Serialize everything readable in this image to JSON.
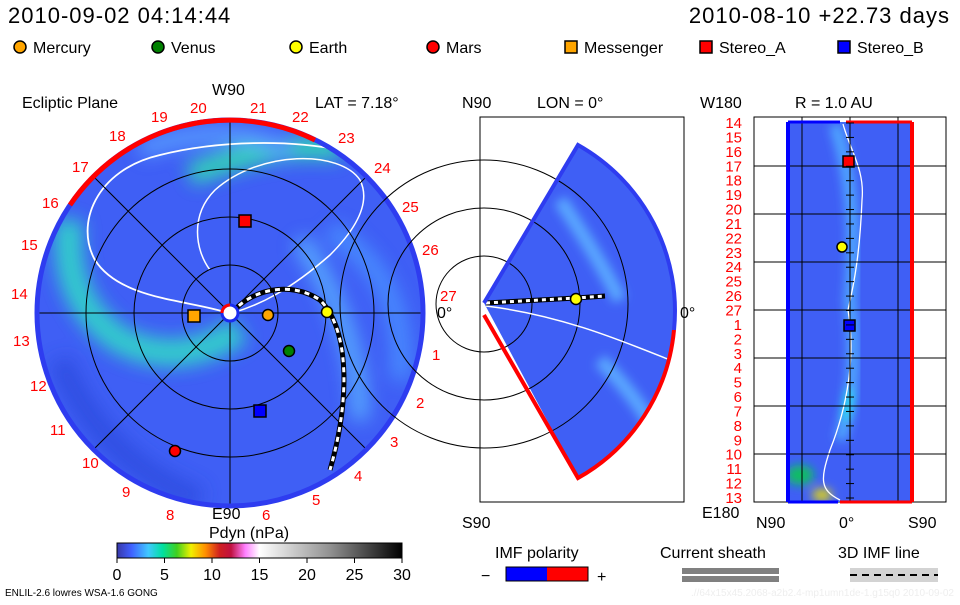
{
  "header": {
    "sim_time": "2010-09-02 04:14:44",
    "ref_time": "2010-08-10 +22.73 days"
  },
  "legend": [
    {
      "label": "Mercury",
      "shape": "circle",
      "color": "#ffa500"
    },
    {
      "label": "Venus",
      "shape": "circle",
      "color": "#008000"
    },
    {
      "label": "Earth",
      "shape": "circle",
      "color": "#ffff00"
    },
    {
      "label": "Mars",
      "shape": "circle",
      "color": "#ff0000"
    },
    {
      "label": "Messenger",
      "shape": "square",
      "color": "#ffa500"
    },
    {
      "label": "Stereo_A",
      "shape": "square",
      "color": "#ff0000"
    },
    {
      "label": "Stereo_B",
      "shape": "square",
      "color": "#0000ff"
    }
  ],
  "ecliptic": {
    "title": "Ecliptic Plane",
    "top": "W90",
    "bottom": "E90",
    "right": "0°",
    "lat": "LAT = 7.18°",
    "days": [
      "27",
      "1",
      "2",
      "3",
      "4",
      "5",
      "6",
      "7",
      "8",
      "9",
      "10",
      "11",
      "12",
      "13",
      "14",
      "15",
      "16",
      "17",
      "18",
      "19",
      "20",
      "21",
      "22",
      "23",
      "24",
      "25",
      "26"
    ]
  },
  "meridional": {
    "top": "N90",
    "bottom": "S90",
    "right": "0°",
    "lon": "LON = 0°"
  },
  "radial": {
    "title": "R = 1.0 AU",
    "top": "W180",
    "bottom": "E180",
    "x_left": "N90",
    "x_mid": "0°",
    "x_right": "S90",
    "days": [
      "14",
      "15",
      "16",
      "17",
      "18",
      "19",
      "20",
      "21",
      "22",
      "23",
      "24",
      "25",
      "26",
      "27",
      "1",
      "2",
      "3",
      "4",
      "5",
      "6",
      "7",
      "8",
      "9",
      "10",
      "11",
      "12",
      "13"
    ]
  },
  "colorbar": {
    "title": "Pdyn (nPa)",
    "ticks": [
      "0",
      "5",
      "10",
      "15",
      "20",
      "25",
      "30"
    ],
    "range": [
      0,
      30
    ]
  },
  "imf": {
    "title": "IMF polarity",
    "minus": "−",
    "plus": "+",
    "neg_color": "#0000ff",
    "pos_color": "#ff0000"
  },
  "sheath": {
    "title": "Current sheath"
  },
  "imfline": {
    "title": "3D IMF line"
  },
  "footer": {
    "model": "ENLIL-2.6 lowres WSA-1.6 GONG",
    "run": ".//64x15x45.2068-a2b2.4-mp1umn1de-1.g15q0   2010-09-02"
  }
}
